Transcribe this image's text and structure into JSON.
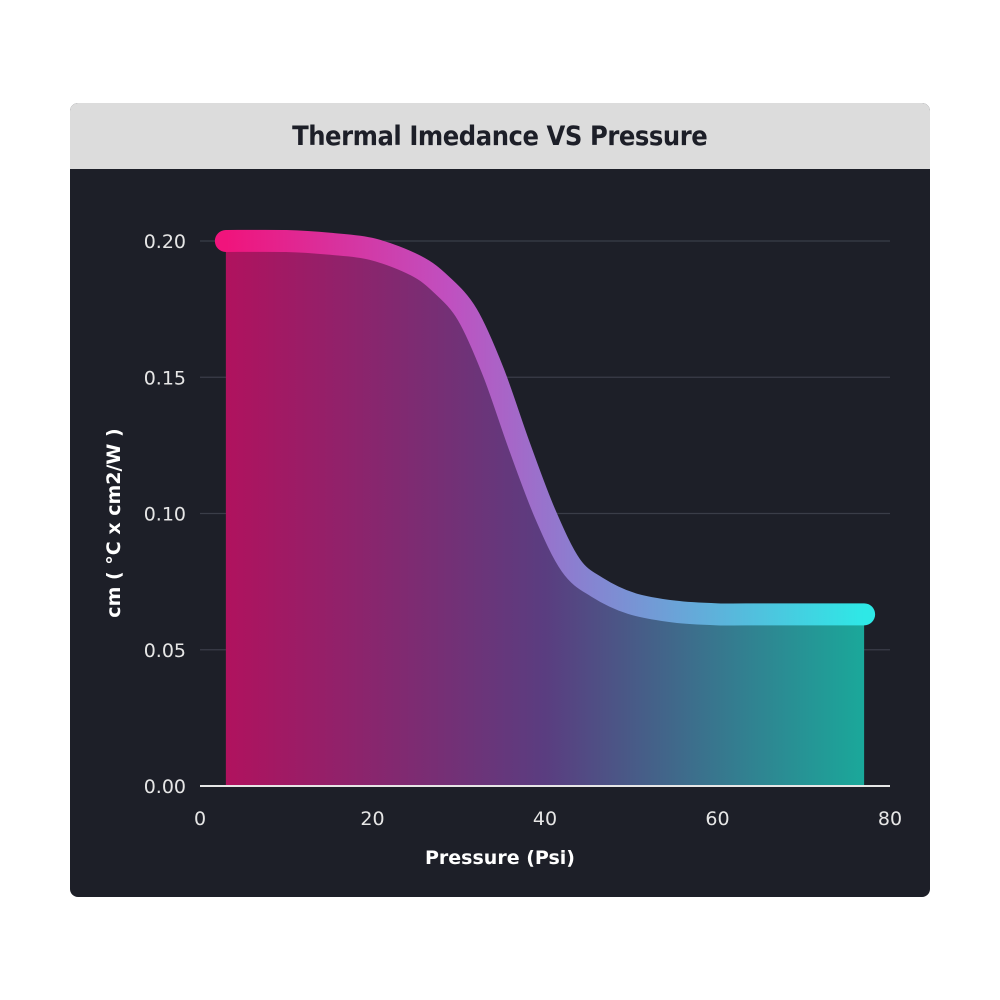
{
  "chart_data": {
    "type": "area",
    "title": "Thermal Imedance VS Pressure",
    "xlabel": "Pressure (Psi)",
    "ylabel": "cm ( °C x cm2/W )",
    "xlim": [
      0,
      80
    ],
    "ylim": [
      0,
      0.2
    ],
    "x_ticks": [
      "0",
      "20",
      "40",
      "60",
      "80"
    ],
    "y_ticks": [
      "0.00",
      "0.05",
      "0.10",
      "0.15",
      "0.20"
    ],
    "grid": "horizontal",
    "series": [
      {
        "x": [
          3,
          10,
          15,
          20,
          25,
          28,
          31,
          34,
          37,
          40,
          43,
          46,
          50,
          55,
          60,
          65,
          70,
          74,
          77
        ],
        "values": [
          0.2,
          0.2,
          0.199,
          0.197,
          0.191,
          0.184,
          0.173,
          0.152,
          0.125,
          0.1,
          0.081,
          0.073,
          0.067,
          0.064,
          0.063,
          0.063,
          0.063,
          0.063,
          0.063
        ],
        "colors": [
          "#f0147c",
          "#c050c0",
          "#8a7fd0",
          "#2ee8e6"
        ]
      }
    ]
  }
}
